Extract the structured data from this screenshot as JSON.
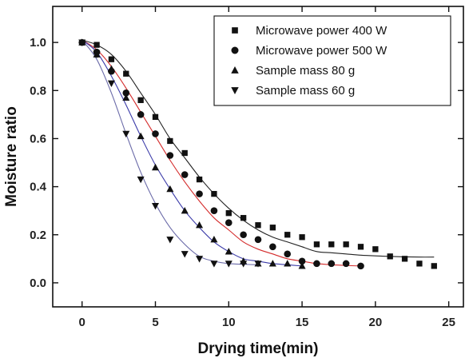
{
  "chart_data": {
    "type": "scatter",
    "title": "",
    "xlabel": "Drying time(min)",
    "ylabel": "Moisture ratio",
    "xlim": [
      -2,
      26
    ],
    "ylim": [
      -0.1,
      1.15
    ],
    "xticks": [
      0,
      5,
      10,
      15,
      20,
      25
    ],
    "yticks": [
      0.0,
      0.2,
      0.4,
      0.6,
      0.8,
      1.0
    ],
    "ytick_labels": [
      "0.0",
      "0.2",
      "0.4",
      "0.6",
      "0.8",
      "1.0"
    ],
    "legend_position": "top-right",
    "grid": false,
    "series": [
      {
        "name": "Microwave power 400 W",
        "marker": "square",
        "fit_color": "#222222",
        "x": [
          0,
          1,
          2,
          3,
          4,
          5,
          6,
          7,
          8,
          9,
          10,
          11,
          12,
          13,
          14,
          15,
          16,
          17,
          18,
          19,
          20,
          21,
          22,
          23,
          24
        ],
        "y": [
          1.0,
          0.99,
          0.93,
          0.87,
          0.76,
          0.69,
          0.59,
          0.54,
          0.43,
          0.37,
          0.29,
          0.27,
          0.24,
          0.23,
          0.2,
          0.19,
          0.16,
          0.16,
          0.16,
          0.15,
          0.14,
          0.11,
          0.1,
          0.08,
          0.07
        ],
        "fit": [
          [
            0,
            1.01
          ],
          [
            1,
            0.99
          ],
          [
            2,
            0.95
          ],
          [
            3,
            0.88
          ],
          [
            4,
            0.79
          ],
          [
            5,
            0.7
          ],
          [
            6,
            0.6
          ],
          [
            7,
            0.52
          ],
          [
            8,
            0.44
          ],
          [
            9,
            0.37
          ],
          [
            10,
            0.31
          ],
          [
            11,
            0.26
          ],
          [
            12,
            0.22
          ],
          [
            13,
            0.19
          ],
          [
            14,
            0.17
          ],
          [
            15,
            0.15
          ],
          [
            16,
            0.13
          ],
          [
            17,
            0.125
          ],
          [
            18,
            0.12
          ],
          [
            19,
            0.115
          ],
          [
            20,
            0.112
          ],
          [
            21,
            0.11
          ],
          [
            22,
            0.108
          ],
          [
            23,
            0.107
          ],
          [
            24,
            0.107
          ]
        ]
      },
      {
        "name": "Microwave power 500 W",
        "marker": "circle",
        "fit_color": "#d42a2a",
        "x": [
          0,
          1,
          2,
          3,
          4,
          5,
          6,
          7,
          8,
          9,
          10,
          11,
          12,
          13,
          14,
          15,
          16,
          17,
          18,
          19
        ],
        "y": [
          1.0,
          0.96,
          0.88,
          0.79,
          0.7,
          0.62,
          0.53,
          0.45,
          0.37,
          0.3,
          0.25,
          0.2,
          0.18,
          0.15,
          0.12,
          0.09,
          0.08,
          0.08,
          0.08,
          0.07
        ],
        "fit": [
          [
            0,
            1.01
          ],
          [
            1,
            0.97
          ],
          [
            2,
            0.9
          ],
          [
            3,
            0.81
          ],
          [
            4,
            0.71
          ],
          [
            5,
            0.61
          ],
          [
            6,
            0.51
          ],
          [
            7,
            0.42
          ],
          [
            8,
            0.34
          ],
          [
            9,
            0.27
          ],
          [
            10,
            0.22
          ],
          [
            11,
            0.17
          ],
          [
            12,
            0.14
          ],
          [
            13,
            0.12
          ],
          [
            14,
            0.1
          ],
          [
            15,
            0.09
          ],
          [
            16,
            0.08
          ],
          [
            17,
            0.075
          ],
          [
            18,
            0.072
          ],
          [
            19,
            0.07
          ]
        ]
      },
      {
        "name": "Sample mass 80 g",
        "marker": "triangle-up",
        "fit_color": "#3a3aa8",
        "x": [
          0,
          1,
          2,
          3,
          4,
          5,
          6,
          7,
          8,
          9,
          10,
          11,
          12,
          13,
          14,
          15
        ],
        "y": [
          1.0,
          0.95,
          0.89,
          0.77,
          0.61,
          0.48,
          0.39,
          0.3,
          0.24,
          0.18,
          0.13,
          0.09,
          0.08,
          0.08,
          0.08,
          0.07
        ],
        "fit": [
          [
            0,
            1.01
          ],
          [
            1,
            0.96
          ],
          [
            2,
            0.86
          ],
          [
            3,
            0.74
          ],
          [
            4,
            0.61
          ],
          [
            5,
            0.49
          ],
          [
            6,
            0.39
          ],
          [
            7,
            0.3
          ],
          [
            8,
            0.23
          ],
          [
            9,
            0.17
          ],
          [
            10,
            0.13
          ],
          [
            11,
            0.1
          ],
          [
            12,
            0.09
          ],
          [
            13,
            0.08
          ],
          [
            14,
            0.075
          ],
          [
            15,
            0.07
          ]
        ]
      },
      {
        "name": "Sample mass 60 g",
        "marker": "triangle-down",
        "fit_color": "#6a6aa8",
        "x": [
          0,
          1,
          2,
          3,
          4,
          5,
          6,
          7,
          8,
          9,
          10,
          11,
          12
        ],
        "y": [
          1.0,
          0.95,
          0.83,
          0.62,
          0.43,
          0.32,
          0.18,
          0.12,
          0.1,
          0.08,
          0.08,
          0.08,
          0.08
        ],
        "fit": [
          [
            0,
            1.01
          ],
          [
            1,
            0.93
          ],
          [
            2,
            0.79
          ],
          [
            3,
            0.62
          ],
          [
            4,
            0.46
          ],
          [
            5,
            0.33
          ],
          [
            6,
            0.23
          ],
          [
            7,
            0.16
          ],
          [
            8,
            0.11
          ],
          [
            9,
            0.09
          ],
          [
            10,
            0.08
          ],
          [
            11,
            0.077
          ],
          [
            12,
            0.075
          ]
        ]
      }
    ]
  }
}
